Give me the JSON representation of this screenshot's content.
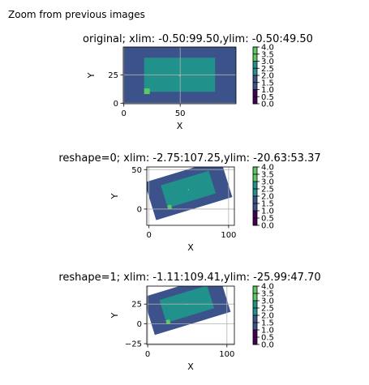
{
  "figure_title": "Zoom from previous images",
  "chart_data": [
    {
      "type": "heatmap",
      "title": "original; xlim: -0.50:99.50,ylim: -0.50:49.50",
      "xlabel": "X",
      "ylabel": "Y",
      "xlim": [
        -0.5,
        99.5
      ],
      "ylim": [
        -0.5,
        49.5
      ],
      "xticks": [
        "0",
        "50"
      ],
      "yticks": [
        "0",
        "25"
      ],
      "grid": true,
      "rotation_deg": 0,
      "background_value": 1,
      "regions": [
        {
          "name": "rectangle",
          "x": [
            18,
            81
          ],
          "y": [
            10,
            40
          ],
          "value": 2
        },
        {
          "name": "square",
          "x": [
            18,
            23
          ],
          "y": [
            8,
            13
          ],
          "value": 3
        },
        {
          "name": "center-dot",
          "x": [
            49,
            50
          ],
          "y": [
            24,
            25
          ],
          "value": 4
        }
      ],
      "colorbar": {
        "ticks": [
          "0.0",
          "0.5",
          "1.0",
          "1.5",
          "2.0",
          "2.5",
          "3.0",
          "3.5",
          "4.0"
        ],
        "range": [
          0,
          4
        ]
      }
    },
    {
      "type": "heatmap",
      "title": "reshape=0; xlim: -2.75:107.25,ylim: -20.63:53.37",
      "xlabel": "X",
      "ylabel": "Y",
      "xlim": [
        -2.75,
        107.25
      ],
      "ylim": [
        -20.63,
        53.37
      ],
      "xticks": [
        "0",
        "100"
      ],
      "yticks": [
        "0",
        "50"
      ],
      "grid": true,
      "rotation_deg": 17,
      "background_value": 1,
      "regions": [
        {
          "name": "rectangle",
          "x": [
            18,
            81
          ],
          "y": [
            10,
            40
          ],
          "value": 2
        },
        {
          "name": "square",
          "x": [
            18,
            23
          ],
          "y": [
            8,
            13
          ],
          "value": 3
        },
        {
          "name": "center-dot",
          "x": [
            49,
            50
          ],
          "y": [
            24,
            25
          ],
          "value": 4
        }
      ],
      "colorbar": {
        "ticks": [
          "0.0",
          "0.5",
          "1.0",
          "1.5",
          "2.0",
          "2.5",
          "3.0",
          "3.5",
          "4.0"
        ],
        "range": [
          0,
          4
        ]
      }
    },
    {
      "type": "heatmap",
      "title": "reshape=1; xlim: -1.11:109.41,ylim: -25.99:47.70",
      "xlabel": "X",
      "ylabel": "Y",
      "xlim": [
        -1.11,
        109.41
      ],
      "ylim": [
        -25.99,
        47.7
      ],
      "xticks": [
        "0",
        "100"
      ],
      "yticks": [
        "−25",
        "0",
        "25"
      ],
      "grid": true,
      "rotation_deg": 17,
      "background_value": 1,
      "regions": [
        {
          "name": "rectangle",
          "x": [
            18,
            81
          ],
          "y": [
            10,
            40
          ],
          "value": 2
        },
        {
          "name": "square",
          "x": [
            18,
            23
          ],
          "y": [
            8,
            13
          ],
          "value": 3
        },
        {
          "name": "center-dot",
          "x": [
            49,
            50
          ],
          "y": [
            24,
            25
          ],
          "value": 4
        }
      ],
      "colorbar": {
        "ticks": [
          "0.0",
          "0.5",
          "1.0",
          "1.5",
          "2.0",
          "2.5",
          "3.0",
          "3.5",
          "4.0"
        ],
        "range": [
          0,
          4
        ]
      }
    }
  ],
  "colors": {
    "v0": "#440154",
    "v1": "#3b528b",
    "v2": "#21918c",
    "v3": "#5ec962",
    "v4": "#fde725",
    "grid": "#b0b0b0",
    "axis": "#000000"
  }
}
